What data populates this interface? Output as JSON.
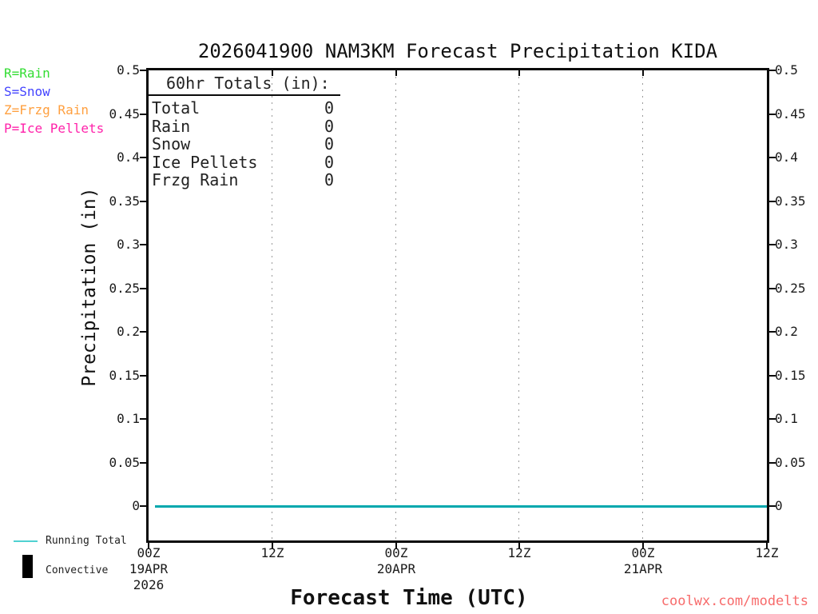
{
  "page": {
    "title": "2026041900 NAM3KM Forecast Precipitation KIDA",
    "watermark": "coolwx.com/modelts",
    "watermark_color": "#f76b6b"
  },
  "series_key": {
    "items": [
      {
        "label": "R=Rain",
        "color": "#33dd33"
      },
      {
        "label": "S=Snow",
        "color": "#4444ff"
      },
      {
        "label": "Z=Frzg Rain",
        "color": "#ffa040"
      },
      {
        "label": "P=Ice Pellets",
        "color": "#ff22aa"
      }
    ]
  },
  "totals_box": {
    "heading": "60hr Totals (in):",
    "rows": [
      {
        "label": "Total",
        "value": "0"
      },
      {
        "label": "Rain",
        "value": "0"
      },
      {
        "label": "Snow",
        "value": "0"
      },
      {
        "label": "Ice Pellets",
        "value": "0"
      },
      {
        "label": "Frzg Rain",
        "value": "0"
      }
    ]
  },
  "bottom_legend": {
    "running_total_label": "Running Total",
    "running_total_color": "#4fd1d1",
    "convective_label": "Convective",
    "convective_color": "#000000"
  },
  "chart_data": {
    "type": "line",
    "title": "2026041900 NAM3KM Forecast Precipitation KIDA",
    "xlabel": "Forecast Time (UTC)",
    "ylabel": "Precipitation (in)",
    "ylim": [
      0,
      0.5
    ],
    "y_tick_labels": [
      "0",
      "0.05",
      "0.1",
      "0.15",
      "0.2",
      "0.25",
      "0.3",
      "0.35",
      "0.4",
      "0.45",
      "0.5"
    ],
    "x_span_hours": 60,
    "x_ticks": [
      {
        "label": "00Z",
        "sub": [
          "19APR",
          "2026"
        ]
      },
      {
        "label": "12Z",
        "sub": []
      },
      {
        "label": "00Z",
        "sub": [
          "20APR"
        ]
      },
      {
        "label": "12Z",
        "sub": []
      },
      {
        "label": "00Z",
        "sub": [
          "21APR"
        ]
      },
      {
        "label": "12Z",
        "sub": []
      }
    ],
    "grid": {
      "vertical_dotted_at_ticks": true,
      "horizontal": false
    },
    "legend_position": "top-left-outside",
    "series": [
      {
        "name": "Running Total",
        "style": "line",
        "color": "#00a8ad",
        "x_hours": [
          0,
          60
        ],
        "values": [
          0,
          0
        ]
      },
      {
        "name": "Convective",
        "style": "bar",
        "color": "#000000",
        "x_hours": [
          0,
          60
        ],
        "values": [
          0,
          0
        ]
      }
    ]
  }
}
